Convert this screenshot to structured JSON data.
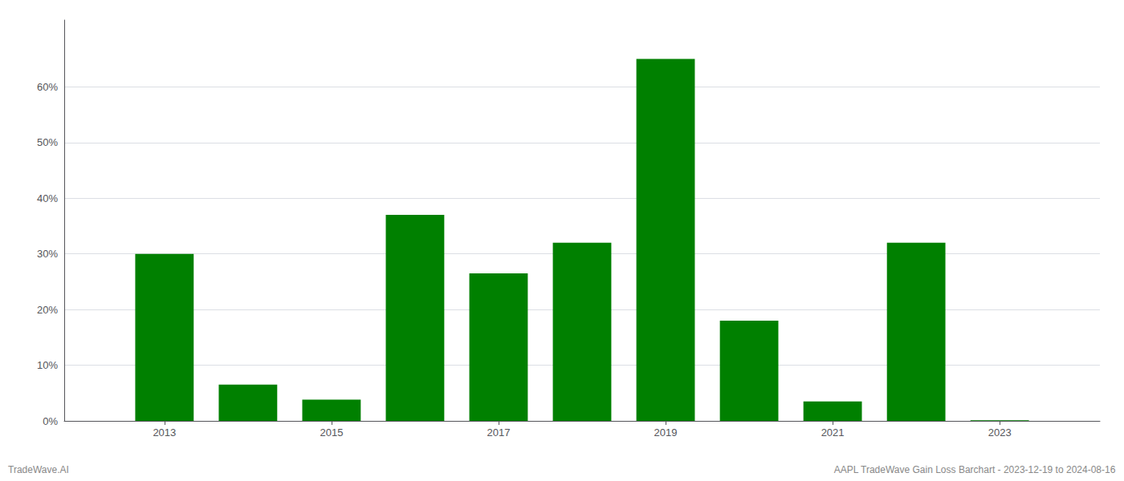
{
  "chart_data": {
    "type": "bar",
    "x": [
      2013,
      2014,
      2015,
      2016,
      2017,
      2018,
      2019,
      2020,
      2021,
      2022,
      2023
    ],
    "values": [
      0.3,
      0.065,
      0.038,
      0.37,
      0.265,
      0.32,
      0.65,
      0.18,
      0.035,
      0.32,
      0.001
    ],
    "color": "#008000",
    "xlim": [
      2011.8,
      2024.2
    ],
    "xticks": [
      2013,
      2015,
      2017,
      2019,
      2021,
      2023
    ],
    "ylim": [
      0,
      0.72
    ],
    "yticks": [
      {
        "value": 0.0,
        "label": "0%"
      },
      {
        "value": 0.1,
        "label": "10%"
      },
      {
        "value": 0.2,
        "label": "20%"
      },
      {
        "value": 0.3,
        "label": "30%"
      },
      {
        "value": 0.4,
        "label": "40%"
      },
      {
        "value": 0.5,
        "label": "50%"
      },
      {
        "value": 0.6,
        "label": "60%"
      }
    ],
    "grid": true,
    "annotations": [
      "TradeWave.AI",
      "AAPL TradeWave Gain Loss Barchart - 2023-12-19 to 2024-08-16"
    ]
  }
}
